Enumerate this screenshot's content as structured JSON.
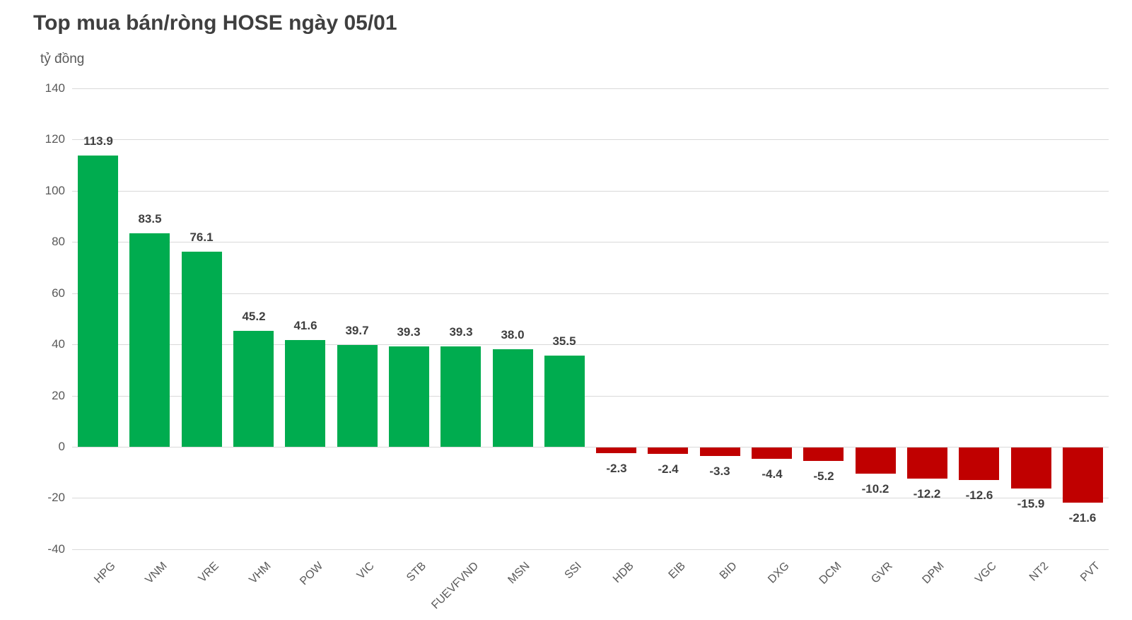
{
  "chart_data": {
    "type": "bar",
    "title": "Top mua bán/ròng HOSE ngày 05/01",
    "unit_label": "tỷ đồng",
    "xlabel": "",
    "ylabel": "tỷ đồng",
    "categories": [
      "HPG",
      "VNM",
      "VRE",
      "VHM",
      "POW",
      "VIC",
      "STB",
      "FUEVFVND",
      "MSN",
      "SSI",
      "HDB",
      "EIB",
      "BID",
      "DXG",
      "DCM",
      "GVR",
      "DPM",
      "VGC",
      "NT2",
      "PVT"
    ],
    "values": [
      113.9,
      83.5,
      76.1,
      45.2,
      41.6,
      39.7,
      39.3,
      39.3,
      38.0,
      35.5,
      -2.3,
      -2.4,
      -3.3,
      -4.4,
      -5.2,
      -10.2,
      -12.2,
      -12.6,
      -15.9,
      -21.6
    ],
    "data_labels": [
      "113.9",
      "83.5",
      "76.1",
      "45.2",
      "41.6",
      "39.7",
      "39.3",
      "39.3",
      "38.0",
      "35.5",
      "-2.3",
      "-2.4",
      "-3.3",
      "-4.4",
      "-5.2",
      "-10.2",
      "-12.2",
      "-12.6",
      "-15.9",
      "-21.6"
    ],
    "y_ticks": [
      140,
      120,
      100,
      80,
      60,
      40,
      20,
      0,
      -20,
      -40
    ],
    "y_tick_labels": [
      "140",
      "120",
      "100",
      "80",
      "60",
      "40",
      "20",
      "0",
      "-20",
      "-40"
    ],
    "ylim": [
      -40,
      140
    ],
    "grid": "horizontal",
    "legend": "none",
    "colors": {
      "positive_bar": "#00AC4F",
      "negative_bar": "#C00000",
      "gridline": "#D9D9D9",
      "axis_text": "#595959",
      "data_label_text": "#3F3F3F",
      "title_text": "#3F3F3F",
      "background": "#FFFFFF"
    }
  }
}
